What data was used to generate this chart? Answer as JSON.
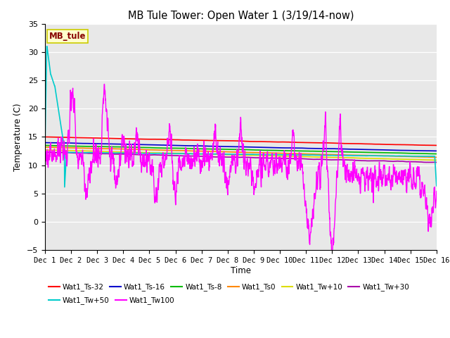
{
  "title": "MB Tule Tower: Open Water 1 (3/19/14-now)",
  "xlabel": "Time",
  "ylabel": "Temperature (C)",
  "xlim": [
    0,
    15
  ],
  "ylim": [
    -5,
    35
  ],
  "yticks": [
    -5,
    0,
    5,
    10,
    15,
    20,
    25,
    30,
    35
  ],
  "xtick_labels": [
    "Dec 1",
    "Dec 2",
    "Dec 3",
    "Dec 4",
    "Dec 5",
    "Dec 6",
    "Dec 7",
    "Dec 8",
    "Dec 9",
    "Dec 10",
    "Dec 11",
    "Dec 12",
    "Dec 13",
    "Dec 14",
    "Dec 15",
    "Dec 16"
  ],
  "bg_color": "#e8e8e8",
  "fig_color": "#ffffff",
  "annotation_text": "MB_tule",
  "annotation_box_facecolor": "#ffffcc",
  "annotation_box_edgecolor": "#cccc00",
  "annotation_text_color": "#880000",
  "grid_color": "#ffffff",
  "series_order": [
    "Wat1_Ts-32",
    "Wat1_Ts-16",
    "Wat1_Ts-8",
    "Wat1_Ts0",
    "Wat1_Tw+10",
    "Wat1_Tw+30",
    "Wat1_Tw+50",
    "Wat1_Tw100"
  ],
  "series": {
    "Wat1_Ts-32": {
      "color": "#ff0000",
      "lw": 1.2
    },
    "Wat1_Ts-16": {
      "color": "#0000cc",
      "lw": 1.2
    },
    "Wat1_Ts-8": {
      "color": "#00bb00",
      "lw": 1.2
    },
    "Wat1_Ts0": {
      "color": "#ff8800",
      "lw": 1.2
    },
    "Wat1_Tw+10": {
      "color": "#dddd00",
      "lw": 1.2
    },
    "Wat1_Tw+30": {
      "color": "#aa00aa",
      "lw": 1.2
    },
    "Wat1_Tw+50": {
      "color": "#00cccc",
      "lw": 1.2
    },
    "Wat1_Tw100": {
      "color": "#ff00ff",
      "lw": 1.0
    }
  },
  "legend_row1": [
    "Wat1_Ts-32",
    "Wat1_Ts-16",
    "Wat1_Ts-8",
    "Wat1_Ts0",
    "Wat1_Tw+10",
    "Wat1_Tw+30"
  ],
  "legend_row2": [
    "Wat1_Tw+50",
    "Wat1_Tw100"
  ]
}
